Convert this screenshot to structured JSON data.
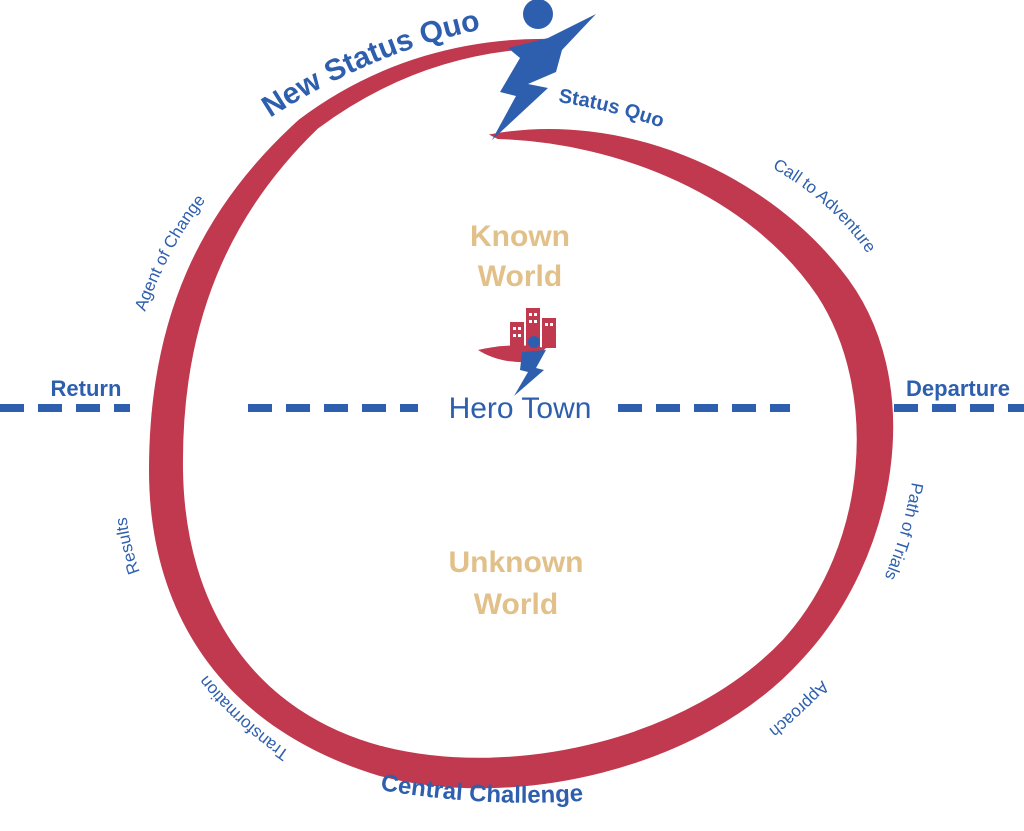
{
  "colors": {
    "blue": "#2E5FAE",
    "red": "#C0394E",
    "tan": "#E2C089"
  },
  "stages": {
    "new_status_quo": "New Status Quo",
    "status_quo": "Status Quo",
    "call_to_adventure": "Call to Adventure",
    "departure": "Departure",
    "path_of_trials": "Path of Trials",
    "approach": "Approach",
    "central_challenge": "Central Challenge",
    "transformation": "Transformation",
    "results": "Results",
    "return": "Return",
    "agent_of_change": "Agent of Change"
  },
  "regions": {
    "known_line1": "Known",
    "known_line2": "World",
    "unknown_line1": "Unknown",
    "unknown_line2": "World"
  },
  "logo": {
    "text": "Hero Town",
    "icon": "hero-town-logo-icon"
  },
  "hero_icon": "running-hero-figure-icon"
}
